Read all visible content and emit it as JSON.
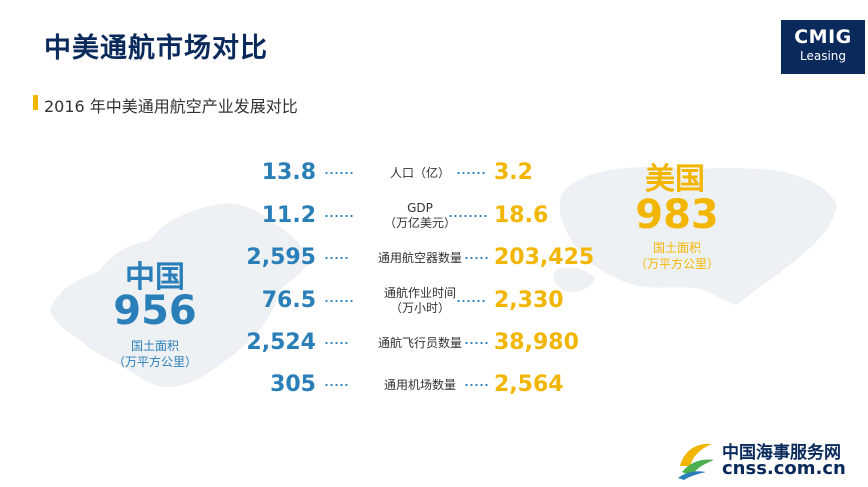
{
  "header": {
    "title": "中美通航市场对比",
    "logo_brand": "CMIG",
    "logo_sub": "Leasing"
  },
  "subtitle": "2016 年中美通用航空产业发展对比",
  "china": {
    "name": "中国",
    "area": "956",
    "area_label": "国土面积",
    "area_unit": "（万平方公里）"
  },
  "usa": {
    "name": "美国",
    "area": "983",
    "area_label": "国土面积",
    "area_unit": "（万平方公里）"
  },
  "rows": [
    {
      "cn": "13.8",
      "label": "人口（亿）",
      "us": "3.2"
    },
    {
      "cn": "11.2",
      "label": "GDP\n（万亿美元）",
      "us": "18.6"
    },
    {
      "cn": "2,595",
      "label": "通用航空器数量",
      "us": "203,425"
    },
    {
      "cn": "76.5",
      "label": "通航作业时间\n（万小时）",
      "us": "2,330"
    },
    {
      "cn": "2,524",
      "label": "通航飞行员数量",
      "us": "38,980"
    },
    {
      "cn": "305",
      "label": "通用机场数量",
      "us": "2,564"
    }
  ],
  "footer": {
    "name": "中国海事服务网",
    "url": "cnss.com.cn"
  },
  "colors": {
    "navy": "#0a2a5c",
    "china_blue": "#2a7fb8",
    "usa_gold": "#f2b600",
    "map_gray": "#eef1f4"
  },
  "icons": {
    "china_map": "china-map-silhouette",
    "usa_map": "usa-map-silhouette",
    "footer_logo": "cnss-swirl-logo"
  }
}
